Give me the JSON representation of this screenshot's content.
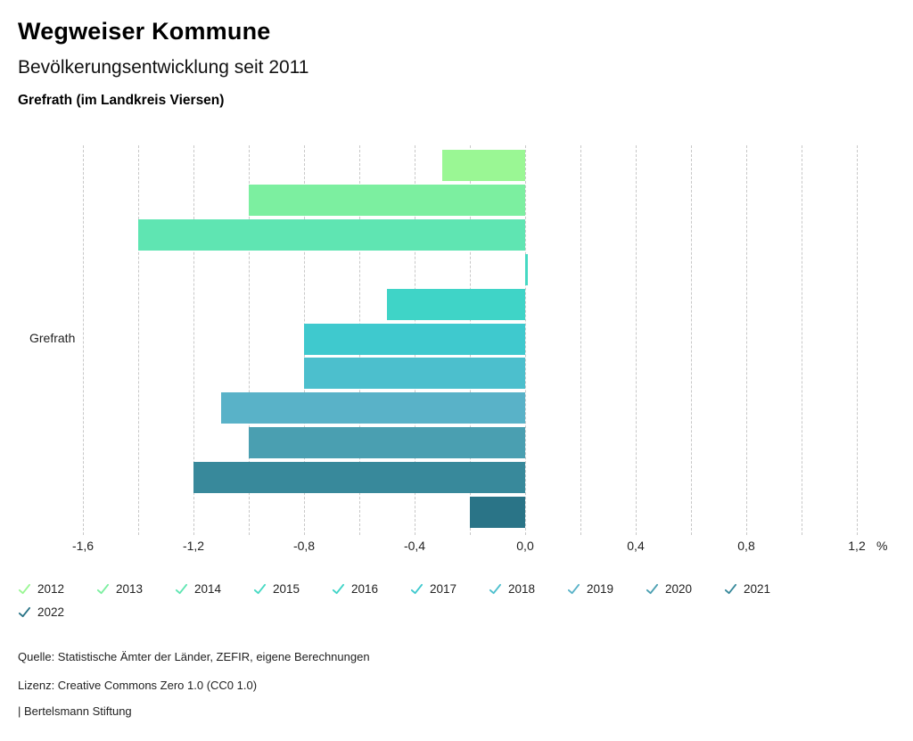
{
  "header": {
    "title": "Wegweiser Kommune",
    "subtitle": "Bevölkerungsentwicklung seit 2011",
    "region": "Grefrath (im Landkreis Viersen)"
  },
  "chart_data": {
    "type": "bar",
    "orientation": "horizontal",
    "category_label": "Grefrath",
    "unit": "%",
    "series": [
      {
        "name": "2012",
        "value": -0.3,
        "color": "#9AF794"
      },
      {
        "name": "2013",
        "value": -1.0,
        "color": "#7CEFA0"
      },
      {
        "name": "2014",
        "value": -1.4,
        "color": "#5FE5B2"
      },
      {
        "name": "2015",
        "value": 0.01,
        "color": "#46D9C3"
      },
      {
        "name": "2016",
        "value": -0.5,
        "color": "#3FD4C7"
      },
      {
        "name": "2017",
        "value": -0.8,
        "color": "#3FC9CE"
      },
      {
        "name": "2018",
        "value": -0.8,
        "color": "#4CBFCD"
      },
      {
        "name": "2019",
        "value": -1.1,
        "color": "#59B2C8"
      },
      {
        "name": "2020",
        "value": -1.0,
        "color": "#4A9FB1"
      },
      {
        "name": "2021",
        "value": -1.2,
        "color": "#38899B"
      },
      {
        "name": "2022",
        "value": -0.2,
        "color": "#2A7487"
      }
    ],
    "axis": {
      "min": -1.9,
      "max": 1.4,
      "grid_min": -1.6,
      "grid_max": 1.2,
      "grid_step": 0.2,
      "tick_values": [
        -1.6,
        -1.2,
        -0.8,
        -0.4,
        0.0,
        0.4,
        0.8,
        1.2
      ],
      "tick_labels": [
        "-1,6",
        "-1,2",
        "-0,8",
        "-0,4",
        "0,0",
        "0,4",
        "0,8",
        "1,2"
      ]
    },
    "grid": true,
    "legend_position": "bottom",
    "legend_rows": [
      10,
      1
    ]
  },
  "footer": {
    "source": "Quelle: Statistische Ämter der Länder, ZEFIR, eigene Berechnungen",
    "license": "Lizenz: Creative Commons Zero 1.0 (CC0 1.0)",
    "attribution": "| Bertelsmann Stiftung"
  }
}
